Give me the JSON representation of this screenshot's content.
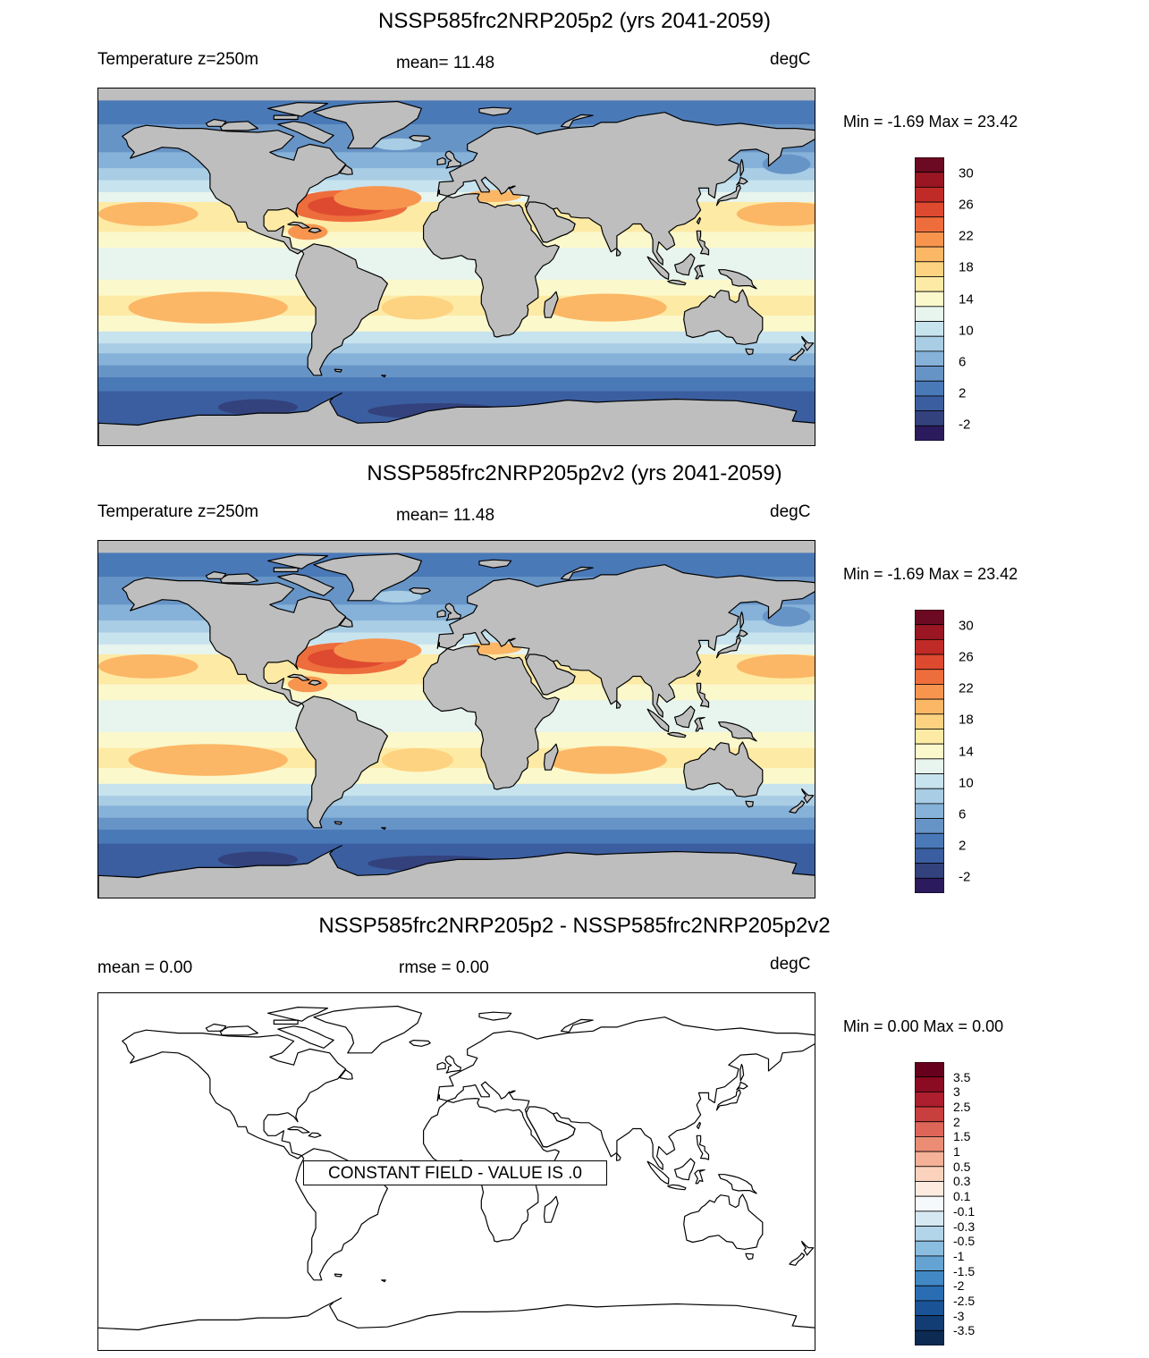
{
  "panels": [
    {
      "title": "NSSP585frc2NRP205p2 (yrs 2041-2059)",
      "left_label": "Temperature z=250m",
      "center_label": "mean=  11.48",
      "units": "degC",
      "minmax": "Min =  -1.69 Max =  23.42",
      "colorbar_labels": [
        "30",
        "26",
        "22",
        "18",
        "14",
        "10",
        "6",
        "2",
        "-2"
      ]
    },
    {
      "title": "NSSP585frc2NRP205p2v2 (yrs 2041-2059)",
      "left_label": "Temperature z=250m",
      "center_label": "mean=  11.48",
      "units": "degC",
      "minmax": "Min =  -1.69 Max =  23.42",
      "colorbar_labels": [
        "30",
        "26",
        "22",
        "18",
        "14",
        "10",
        "6",
        "2",
        "-2"
      ]
    },
    {
      "title": "NSSP585frc2NRP205p2 - NSSP585frc2NRP205p2v2",
      "left_label": "mean =   0.00",
      "center_label": "rmse =   0.00",
      "units": "degC",
      "minmax": "Min =   0.00 Max =   0.00",
      "constant_field": "CONSTANT FIELD - VALUE IS .0",
      "colorbar_labels": [
        "3.5",
        "3",
        "2.5",
        "2",
        "1.5",
        "1",
        "0.5",
        "0.3",
        "0.1",
        "-0.1",
        "-0.3",
        "-0.5",
        "-1",
        "-1.5",
        "-2",
        "-2.5",
        "-3",
        "-3.5"
      ]
    }
  ],
  "colors": {
    "land": "#bebebe",
    "temp_scale": [
      "#2b1b5c",
      "#33427d",
      "#3b5ea0",
      "#4a79b8",
      "#6794c6",
      "#86b1d8",
      "#a8cde4",
      "#c7e3ee",
      "#e8f4ee",
      "#fbf8cc",
      "#fdeaa5",
      "#fdd381",
      "#fbb766",
      "#f7954f",
      "#ee6d3c",
      "#de4a30",
      "#c02b27",
      "#9a1623",
      "#6b0a22"
    ],
    "diff_scale": [
      "#0c2a52",
      "#123d74",
      "#1b5496",
      "#2a6db3",
      "#4288c4",
      "#64a3d2",
      "#8bbde0",
      "#b3d5ea",
      "#d6e8f2",
      "#f5f9fb",
      "#fdebe0",
      "#fbd3bd",
      "#f5b298",
      "#eb8d75",
      "#dd6658",
      "#c93e3e",
      "#ad1f2e",
      "#8b0c22",
      "#66001c"
    ]
  }
}
